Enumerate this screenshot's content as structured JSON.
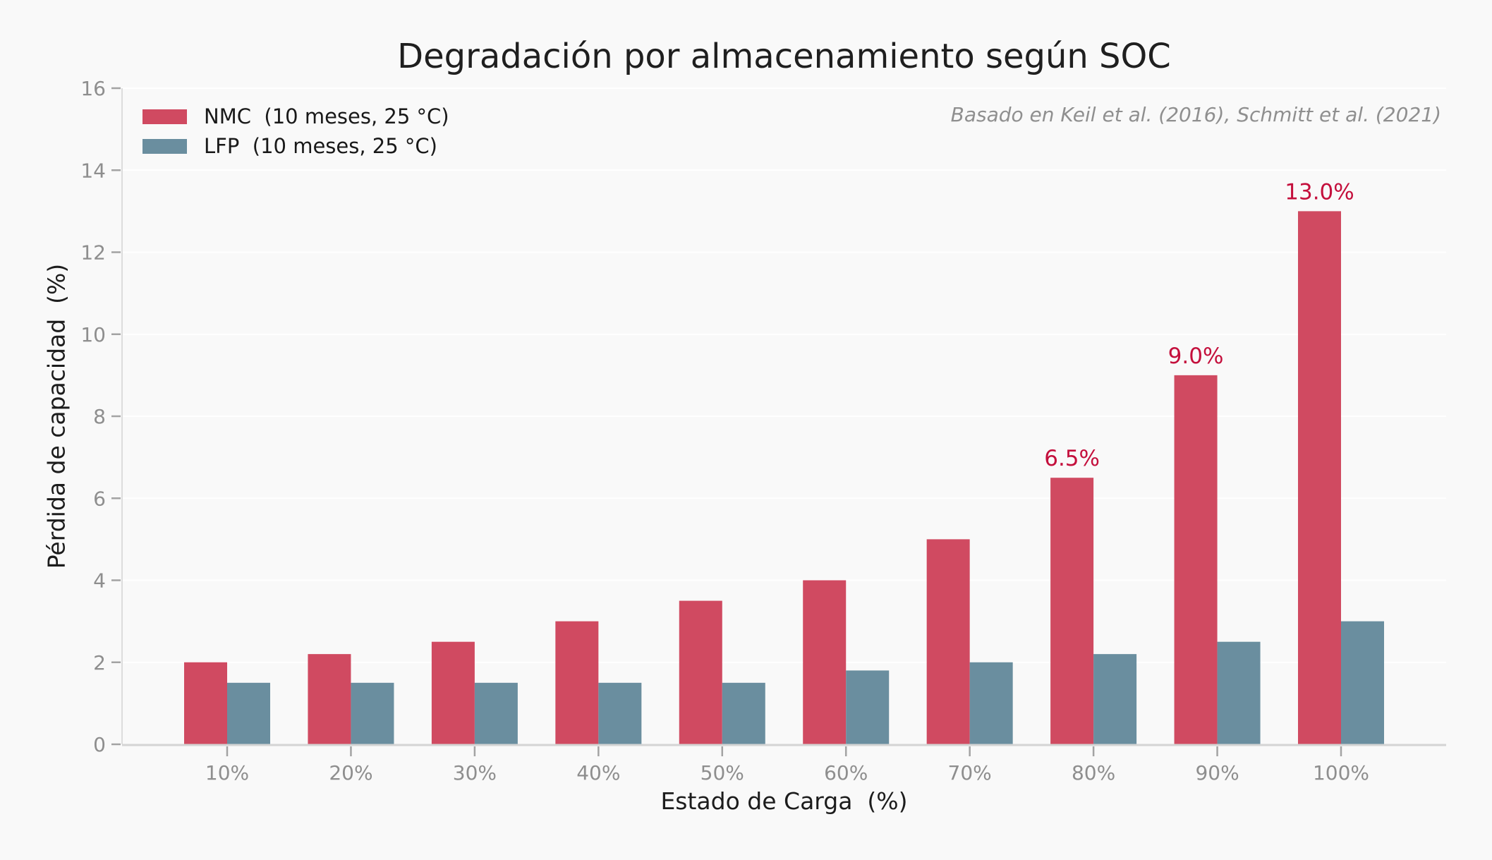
{
  "chart_data": {
    "type": "bar",
    "title": "Degradación por almacenamiento según SOC",
    "citation": "Basado en Keil et al. (2016), Schmitt et al. (2021)",
    "xlabel": "Estado de Carga  (%)",
    "ylabel": "Pérdida de capacidad  (%)",
    "categories": [
      "10%",
      "20%",
      "30%",
      "40%",
      "50%",
      "60%",
      "70%",
      "80%",
      "90%",
      "100%"
    ],
    "series": [
      {
        "name": "NMC  (10 meses, 25 °C)",
        "color": "#d04a61",
        "values": [
          2.0,
          2.2,
          2.5,
          3.0,
          3.5,
          4.0,
          5.0,
          6.5,
          9.0,
          13.0
        ]
      },
      {
        "name": "LFP  (10 meses, 25 °C)",
        "color": "#6a8e9f",
        "values": [
          1.5,
          1.5,
          1.5,
          1.5,
          1.5,
          1.8,
          2.0,
          2.2,
          2.5,
          3.0
        ]
      }
    ],
    "annotations": [
      {
        "series": "NMC",
        "category": "80%",
        "label": "6.5%"
      },
      {
        "series": "NMC",
        "category": "90%",
        "label": "9.0%"
      },
      {
        "series": "NMC",
        "category": "100%",
        "label": "13.0%"
      }
    ],
    "ylim": [
      0,
      16
    ],
    "yticks": [
      0,
      2,
      4,
      6,
      8,
      10,
      12,
      14,
      16
    ],
    "grid": true,
    "legend_position": "top-left"
  },
  "colors": {
    "background": "#f9f9f9",
    "gridline": "#ffffff",
    "spine": "#dcdcdc",
    "baseline": "#d4d4d4",
    "tick_mark": "#a3a3a3",
    "tick_label": "#8e8e8e",
    "annotation": "#c40f3c"
  }
}
